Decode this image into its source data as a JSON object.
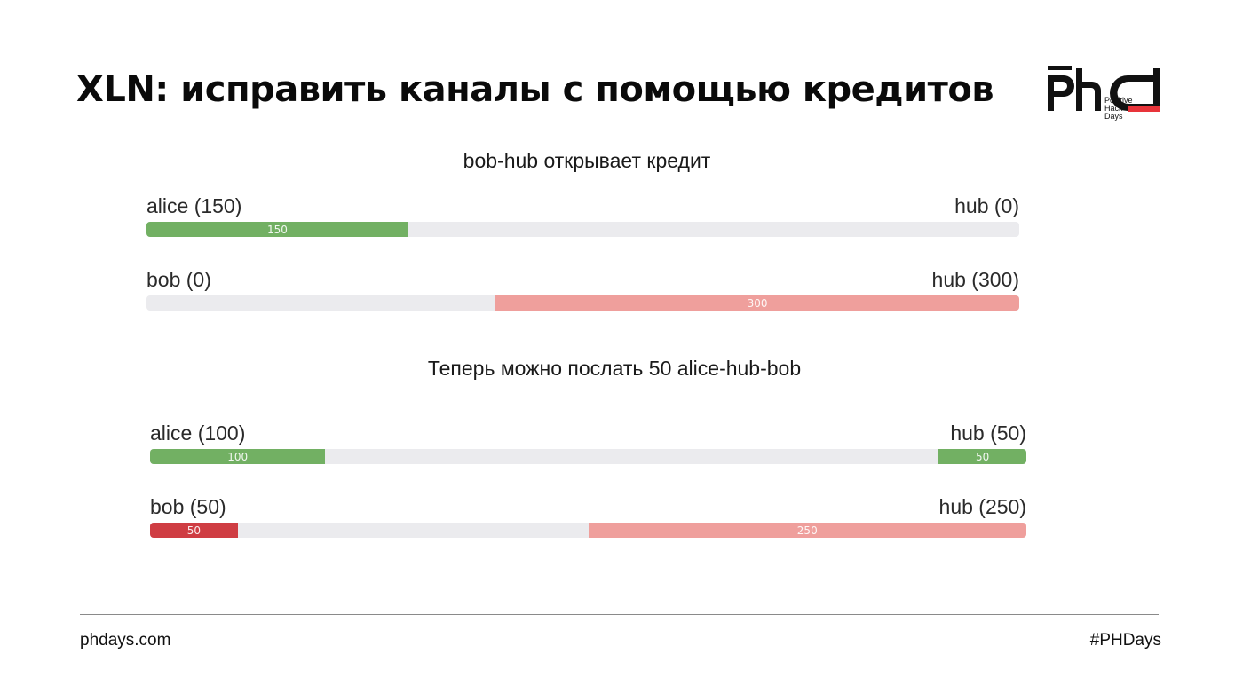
{
  "title": "XLN: исправить каналы с помощью кредитов",
  "logo": {
    "mark": "phd",
    "line1": "Positive",
    "line2": "Hack",
    "line3": "Days",
    "accent_color": "#e8343a"
  },
  "section1": {
    "heading": "bob-hub открывает кредит",
    "channels": [
      {
        "left_label": "alice (150)",
        "right_label": "hub (0)",
        "segments": [
          {
            "label": "150",
            "start": 0,
            "end": 0.3,
            "color": "green"
          }
        ]
      },
      {
        "left_label": "bob (0)",
        "right_label": "hub (300)",
        "segments": [
          {
            "label": "300",
            "start": 0.4,
            "end": 1.0,
            "color": "pink"
          }
        ]
      }
    ]
  },
  "section2": {
    "heading": "Теперь можно послать 50 alice-hub-bob",
    "channels": [
      {
        "left_label": "alice (100)",
        "right_label": "hub (50)",
        "segments": [
          {
            "label": "100",
            "start": 0,
            "end": 0.2,
            "color": "green"
          },
          {
            "label": "50",
            "start": 0.9,
            "end": 1.0,
            "color": "green"
          }
        ]
      },
      {
        "left_label": "bob (50)",
        "right_label": "hub (250)",
        "segments": [
          {
            "label": "50",
            "start": 0,
            "end": 0.1,
            "color": "red"
          },
          {
            "label": "250",
            "start": 0.5,
            "end": 1.0,
            "color": "pink"
          }
        ]
      }
    ]
  },
  "footer": {
    "left": "phdays.com",
    "right": "#PHDays"
  },
  "colors": {
    "green": "#72b063",
    "pink": "#ef9f9c",
    "red": "#cf3d43",
    "track": "#ebebee"
  }
}
